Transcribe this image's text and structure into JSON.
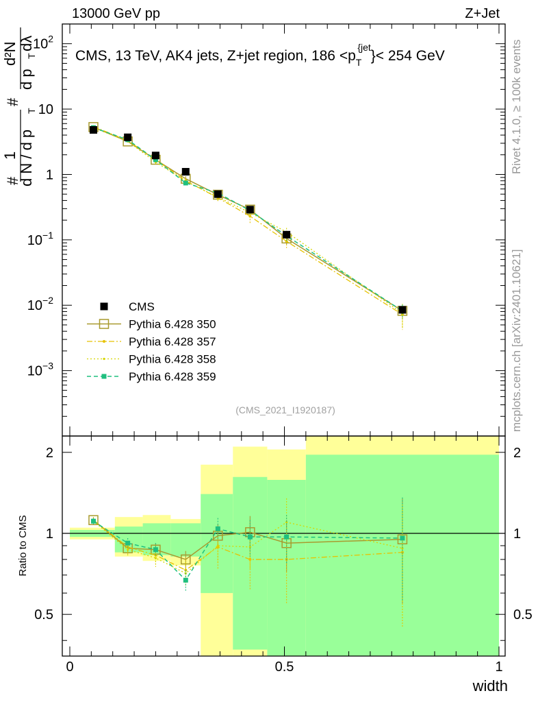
{
  "header": {
    "left": "13000 GeV pp",
    "right": "Z+Jet"
  },
  "plot_title": "CMS, 13 TeV, AK4 jets, Z+jet region, 186 <p_T^{jet}< 254 GeV",
  "title_parts": {
    "pre": "CMS, 13 TeV, AK4 jets, Z+jet region, 186 <p",
    "sub": "T",
    "sup": "{jet",
    "post": "}< 254 GeV"
  },
  "sidebar": {
    "rivet": "Rivet 4.1.0, ≥ 100k events",
    "source": "mcplots.cern.ch [arXiv:2401.10621]"
  },
  "analysis_id": "(CMS_2021_I1920187)",
  "ylabel_top": "1/(dN/dp_T) d²N/(dp_T dλ)",
  "ylabel_parts": {
    "one": "1",
    "dN": "d N / d p",
    "T": "T",
    "d2N": "d²N",
    "dpT": "d p",
    "dl": "dλ",
    "hash": "#"
  },
  "ylabel_bottom": "Ratio to CMS",
  "xlabel": "width",
  "top_ticks": [
    {
      "base": "10",
      "exp": "2",
      "v": 100
    },
    {
      "base": "10",
      "exp": "",
      "v": 10
    },
    {
      "base": "1",
      "exp": "",
      "v": 1
    },
    {
      "base": "10",
      "exp": "−1",
      "v": 0.1
    },
    {
      "base": "10",
      "exp": "−2",
      "v": 0.01
    },
    {
      "base": "10",
      "exp": "−3",
      "v": 0.001
    }
  ],
  "bottom_ticks": [
    "0.5",
    "1",
    "2"
  ],
  "x_ticks": [
    "0",
    "0.5",
    "1"
  ],
  "colors": {
    "cms": "#000000",
    "p350": "#a89a2e",
    "p357": "#e6c200",
    "p358": "#d6d600",
    "p359": "#1fbf7f",
    "band_yellow": "#ffff99",
    "band_green": "#99ff99"
  },
  "chart_data": [
    {
      "type": "scatter",
      "xlabel": "width",
      "ylabel": "1/(dN/dp_T) d²N/(dp_T dλ)",
      "xlim": [
        0,
        1
      ],
      "ylim": [
        0.0001,
        200
      ],
      "yscale": "log",
      "legend_position": "bottom-left",
      "x": [
        0.055,
        0.135,
        0.2,
        0.27,
        0.345,
        0.42,
        0.505,
        0.775
      ],
      "series": [
        {
          "name": "CMS",
          "values": [
            4.8,
            3.7,
            1.95,
            1.1,
            0.5,
            0.29,
            0.12,
            0.0085
          ],
          "err": [
            0.4,
            0.2,
            0.1,
            0.08,
            0.04,
            0.03,
            0.015,
            0.001
          ]
        },
        {
          "name": "Pythia 6.428 350",
          "values": [
            5.3,
            3.2,
            1.68,
            0.86,
            0.49,
            0.29,
            0.105,
            0.0082
          ],
          "err": [
            0.15,
            0.12,
            0.09,
            0.08,
            0.05,
            0.04,
            0.02,
            0.002
          ]
        },
        {
          "name": "Pythia 6.428 357",
          "values": [
            5.4,
            3.3,
            1.68,
            0.8,
            0.44,
            0.23,
            0.095,
            0.0072
          ],
          "err": [
            0.15,
            0.15,
            0.1,
            0.08,
            0.06,
            0.05,
            0.02,
            0.003
          ]
        },
        {
          "name": "Pythia 6.428 358",
          "values": [
            5.2,
            3.2,
            1.55,
            0.79,
            0.45,
            0.26,
            0.132,
            0.0075
          ],
          "err": [
            0.15,
            0.15,
            0.1,
            0.08,
            0.06,
            0.05,
            0.02,
            0.003
          ]
        },
        {
          "name": "Pythia 6.428 359",
          "values": [
            5.2,
            3.4,
            1.68,
            0.74,
            0.52,
            0.28,
            0.115,
            0.0082
          ],
          "err": [
            0.15,
            0.12,
            0.09,
            0.07,
            0.05,
            0.04,
            0.02,
            0.002
          ]
        }
      ]
    },
    {
      "type": "scatter",
      "ylabel": "Ratio to CMS",
      "xlabel": "width",
      "xlim": [
        0,
        1
      ],
      "ylim": [
        0.35,
        2.3
      ],
      "yscale": "log",
      "reference_line": 1,
      "x": [
        0.055,
        0.135,
        0.2,
        0.27,
        0.345,
        0.42,
        0.505,
        0.775
      ],
      "bands": {
        "edges": [
          0,
          0.105,
          0.17,
          0.235,
          0.305,
          0.38,
          0.46,
          0.55,
          1
        ],
        "yellow_lo": [
          0.95,
          0.82,
          0.79,
          0.76,
          0.35,
          0.35,
          0.44,
          0.35
        ],
        "yellow_hi": [
          1.05,
          1.15,
          1.17,
          1.13,
          1.8,
          2.1,
          2.05,
          2.3
        ],
        "green_lo": [
          0.97,
          0.85,
          0.83,
          0.82,
          0.6,
          0.37,
          0.35,
          0.35
        ],
        "green_hi": [
          1.03,
          1.06,
          1.09,
          1.09,
          1.4,
          1.62,
          1.58,
          1.96
        ]
      },
      "series": [
        {
          "name": "Pythia 6.428 350",
          "values": [
            1.12,
            0.88,
            0.87,
            0.8,
            0.98,
            1.01,
            0.92,
            0.95
          ],
          "err": [
            0.03,
            0.04,
            0.05,
            0.06,
            0.1,
            0.15,
            0.2,
            0.4
          ]
        },
        {
          "name": "Pythia 6.428 357",
          "values": [
            1.12,
            0.89,
            0.83,
            0.73,
            0.89,
            0.8,
            0.8,
            0.85
          ],
          "err": [
            0.03,
            0.05,
            0.06,
            0.07,
            0.15,
            0.18,
            0.25,
            0.4
          ]
        },
        {
          "name": "Pythia 6.428 358",
          "values": [
            1.11,
            0.87,
            0.81,
            0.71,
            0.9,
            0.89,
            1.1,
            0.88
          ],
          "err": [
            0.03,
            0.05,
            0.06,
            0.07,
            0.12,
            0.15,
            0.25,
            0.4
          ]
        },
        {
          "name": "Pythia 6.428 359",
          "values": [
            1.11,
            0.92,
            0.87,
            0.67,
            1.04,
            0.97,
            0.97,
            0.96
          ],
          "err": [
            0.03,
            0.04,
            0.05,
            0.06,
            0.1,
            0.15,
            0.2,
            0.4
          ]
        }
      ]
    }
  ]
}
